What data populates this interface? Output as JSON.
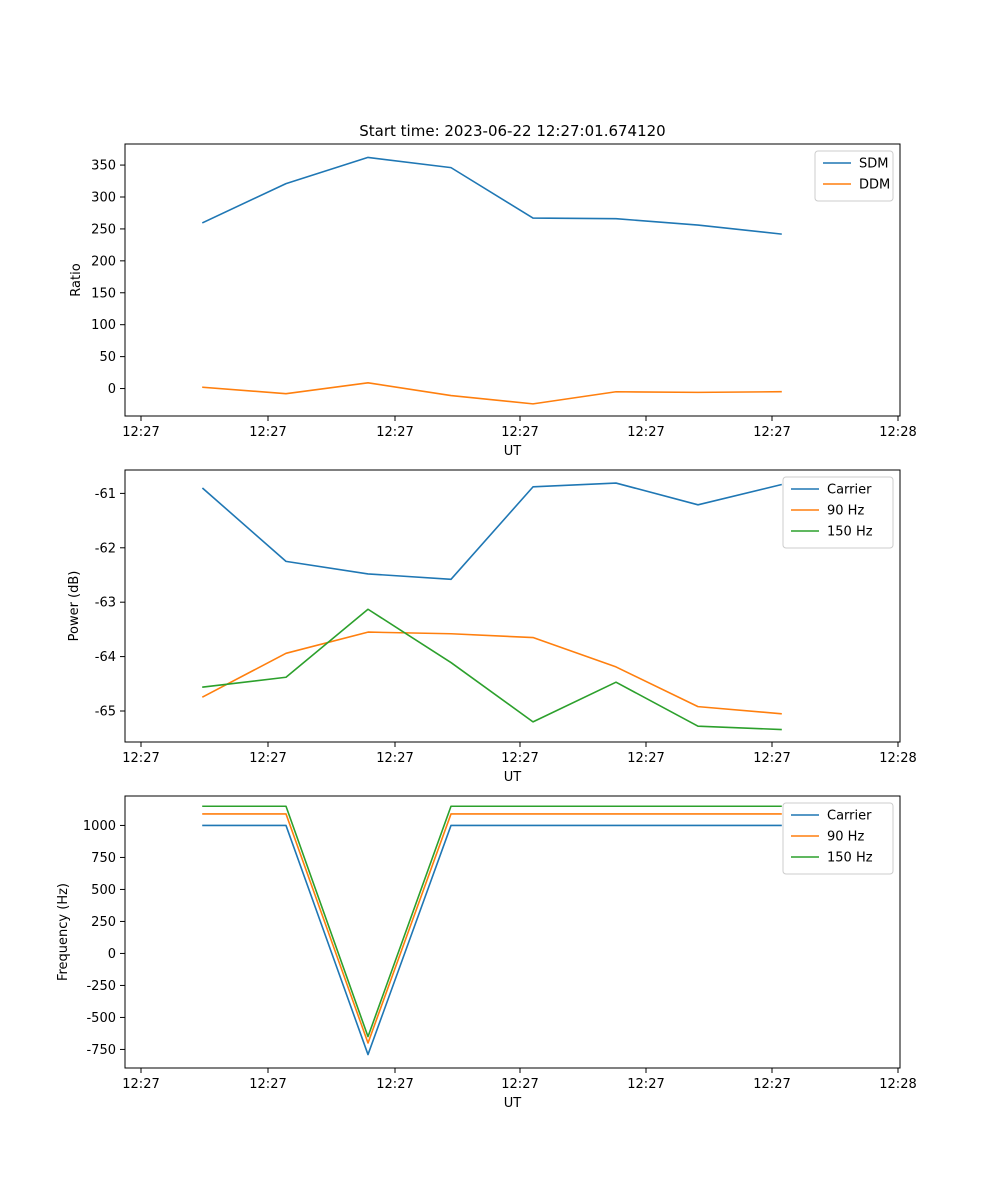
{
  "figure": {
    "title": "Start time: 2023-06-22 12:27:01.674120"
  },
  "chart_data": [
    {
      "type": "line",
      "title": "Start time: 2023-06-22 12:27:01.674120",
      "xlabel": "UT",
      "ylabel": "Ratio",
      "x_tick_labels": [
        "12:27",
        "12:27",
        "12:27",
        "12:27",
        "12:27",
        "12:27",
        "12:28"
      ],
      "y_ticks": [
        0,
        50,
        100,
        150,
        200,
        250,
        300,
        350
      ],
      "ylim": [
        -43,
        383
      ],
      "legend_position": "top-right",
      "grid": false,
      "series": [
        {
          "name": "SDM",
          "color": "#1f77b4",
          "values": [
            260,
            321,
            362,
            346,
            267,
            266,
            256,
            242
          ]
        },
        {
          "name": "DDM",
          "color": "#ff7f0e",
          "values": [
            2,
            -8,
            9,
            -11,
            -24,
            -5,
            -6,
            -5
          ]
        }
      ]
    },
    {
      "type": "line",
      "title": "",
      "xlabel": "UT",
      "ylabel": "Power (dB)",
      "x_tick_labels": [
        "12:27",
        "12:27",
        "12:27",
        "12:27",
        "12:27",
        "12:27",
        "12:28"
      ],
      "y_ticks": [
        -61,
        -62,
        -63,
        -64,
        -65
      ],
      "ylim": [
        -65.57,
        -60.57
      ],
      "legend_position": "top-right",
      "grid": false,
      "series": [
        {
          "name": "Carrier",
          "color": "#1f77b4",
          "values": [
            -60.91,
            -62.25,
            -62.48,
            -62.58,
            -60.88,
            -60.81,
            -61.21,
            -60.84
          ]
        },
        {
          "name": "90 Hz",
          "color": "#ff7f0e",
          "values": [
            -64.74,
            -63.94,
            -63.55,
            -63.58,
            -63.65,
            -64.19,
            -64.92,
            -65.05
          ]
        },
        {
          "name": "150 Hz",
          "color": "#2ca02c",
          "values": [
            -64.56,
            -64.38,
            -63.13,
            -64.11,
            -65.2,
            -64.47,
            -65.28,
            -65.34
          ]
        }
      ]
    },
    {
      "type": "line",
      "title": "",
      "xlabel": "UT",
      "ylabel": "Frequency (Hz)",
      "x_tick_labels": [
        "12:27",
        "12:27",
        "12:27",
        "12:27",
        "12:27",
        "12:27",
        "12:28"
      ],
      "y_ticks": [
        1000,
        750,
        500,
        250,
        0,
        -250,
        -500,
        -750
      ],
      "ylim": [
        -895,
        1230
      ],
      "legend_position": "top-right",
      "grid": false,
      "series": [
        {
          "name": "Carrier",
          "color": "#1f77b4",
          "values": [
            1000,
            1000,
            -790,
            1000,
            1000,
            1000,
            1000,
            1000
          ]
        },
        {
          "name": "90 Hz",
          "color": "#ff7f0e",
          "values": [
            1090,
            1090,
            -700,
            1090,
            1090,
            1090,
            1090,
            1090
          ]
        },
        {
          "name": "150 Hz",
          "color": "#2ca02c",
          "values": [
            1150,
            1150,
            -650,
            1150,
            1150,
            1150,
            1150,
            1150
          ]
        }
      ]
    }
  ]
}
